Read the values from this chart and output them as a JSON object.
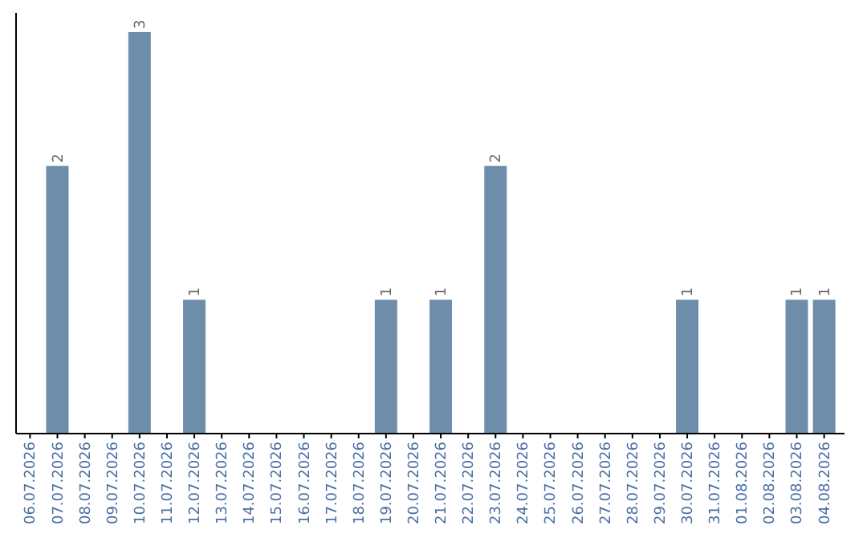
{
  "chart_data": {
    "type": "bar",
    "categories": [
      "06.07.2026",
      "07.07.2026",
      "08.07.2026",
      "09.07.2026",
      "10.07.2026",
      "11.07.2026",
      "12.07.2026",
      "13.07.2026",
      "14.07.2026",
      "15.07.2026",
      "16.07.2026",
      "17.07.2026",
      "18.07.2026",
      "19.07.2026",
      "20.07.2026",
      "21.07.2026",
      "22.07.2026",
      "23.07.2026",
      "24.07.2026",
      "25.07.2026",
      "26.07.2026",
      "27.07.2026",
      "28.07.2026",
      "29.07.2026",
      "30.07.2026",
      "31.07.2026",
      "01.08.2026",
      "02.08.2026",
      "03.08.2026",
      "04.08.2026"
    ],
    "values": [
      0,
      2,
      0,
      0,
      3,
      0,
      1,
      0,
      0,
      0,
      0,
      0,
      0,
      1,
      0,
      1,
      0,
      2,
      0,
      0,
      0,
      0,
      0,
      0,
      1,
      0,
      0,
      0,
      1,
      1
    ],
    "value_labels": [
      null,
      "2",
      null,
      null,
      "3",
      null,
      "1",
      null,
      null,
      null,
      null,
      null,
      null,
      "1",
      null,
      "1",
      null,
      "2",
      null,
      null,
      null,
      null,
      null,
      null,
      "1",
      null,
      null,
      null,
      "1",
      "1"
    ],
    "color": "#6e8dab"
  }
}
